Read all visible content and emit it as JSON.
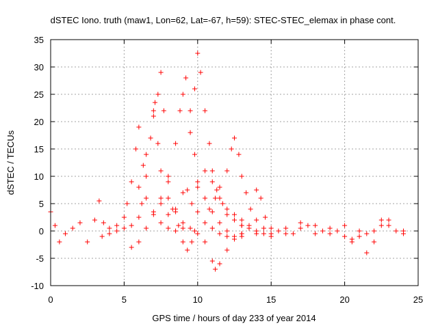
{
  "chart_data": {
    "type": "scatter",
    "title": "dSTEC Iono. truth (maw1, Lon=62, Lat=-67, h=59): STEC-STEC_elemax in phase cont.",
    "xlabel": "GPS time / hours of day 233 of year 2014",
    "ylabel": "dSTEC  / TECUs",
    "xlim": [
      0,
      25
    ],
    "ylim": [
      -10,
      35
    ],
    "xticks": [
      "0",
      "5",
      "10",
      "15",
      "20",
      "25"
    ],
    "yticks": [
      "-10",
      "-5",
      "0",
      "5",
      "10",
      "15",
      "20",
      "25",
      "30",
      "35"
    ],
    "grid": true,
    "marker": "+",
    "colors": {
      "series": "#ff0000",
      "grid": "#a0a0a0",
      "axis": "#000000"
    },
    "series": [
      {
        "values": [
          [
            0,
            3.5
          ],
          [
            0.3,
            1.0
          ],
          [
            0.6,
            -2.0
          ],
          [
            1.0,
            -0.5
          ],
          [
            1.5,
            0.5
          ],
          [
            2.0,
            1.5
          ],
          [
            2.5,
            -2.0
          ],
          [
            3.0,
            2.0
          ],
          [
            3.3,
            5.5
          ],
          [
            3.6,
            1.5
          ],
          [
            4.0,
            0.5
          ],
          [
            4.5,
            1.0
          ],
          [
            5.0,
            2.5
          ],
          [
            5.2,
            5.0
          ],
          [
            5.5,
            9.0
          ],
          [
            5.8,
            15.0
          ],
          [
            6.0,
            19.0
          ],
          [
            6.3,
            12.0
          ],
          [
            6.5,
            6.0
          ],
          [
            7.0,
            3.5
          ],
          [
            7.5,
            1.5
          ],
          [
            8.0,
            0.5
          ],
          [
            8.5,
            0.0
          ],
          [
            9.0,
            0.5
          ]
        ]
      },
      {
        "values": [
          [
            3.5,
            -1.0
          ],
          [
            4.0,
            -0.5
          ],
          [
            4.5,
            0.0
          ],
          [
            5.0,
            0.5
          ],
          [
            5.5,
            1.0
          ],
          [
            6.0,
            2.5
          ],
          [
            6.2,
            5.0
          ],
          [
            6.5,
            10.0
          ],
          [
            6.8,
            17.0
          ],
          [
            7.0,
            22.0
          ],
          [
            7.1,
            23.5
          ],
          [
            7.3,
            16.0
          ],
          [
            7.5,
            11.0
          ],
          [
            8.0,
            6.0
          ],
          [
            8.5,
            3.5
          ],
          [
            9.0,
            1.5
          ],
          [
            9.5,
            0.5
          ],
          [
            10.0,
            -0.5
          ],
          [
            10.5,
            -2.0
          ],
          [
            11.0,
            -5.5
          ],
          [
            11.2,
            -7.0
          ],
          [
            11.5,
            -6.0
          ],
          [
            12.0,
            -3.5
          ],
          [
            12.5,
            -1.5
          ],
          [
            13.0,
            -0.5
          ]
        ]
      },
      {
        "values": [
          [
            5.5,
            -3.0
          ],
          [
            6.0,
            -2.0
          ],
          [
            6.5,
            0.5
          ],
          [
            7.0,
            3.0
          ],
          [
            7.5,
            6.0
          ],
          [
            8.0,
            10.0
          ],
          [
            8.5,
            16.0
          ],
          [
            8.8,
            22.0
          ],
          [
            9.0,
            25.0
          ],
          [
            9.2,
            28.0
          ],
          [
            9.5,
            22.0
          ],
          [
            9.8,
            14.0
          ],
          [
            10.0,
            9.0
          ],
          [
            10.5,
            6.0
          ],
          [
            11.0,
            3.5
          ],
          [
            11.5,
            1.5
          ],
          [
            12.0,
            0.0
          ],
          [
            12.5,
            -1.0
          ],
          [
            13.0,
            -0.5
          ]
        ]
      },
      {
        "values": [
          [
            6.0,
            8.0
          ],
          [
            6.5,
            14.0
          ],
          [
            7.0,
            21.0
          ],
          [
            7.3,
            25.0
          ],
          [
            7.5,
            29.0
          ],
          [
            7.7,
            22.0
          ],
          [
            8.0,
            9.0
          ],
          [
            8.3,
            4.0
          ],
          [
            8.7,
            1.0
          ],
          [
            9.0,
            -2.0
          ],
          [
            9.3,
            -3.5
          ],
          [
            9.6,
            -2.0
          ],
          [
            9.8,
            0.0
          ]
        ]
      },
      {
        "values": [
          [
            7.5,
            5.0
          ],
          [
            8.0,
            3.0
          ],
          [
            8.5,
            4.0
          ],
          [
            9.0,
            7.0
          ],
          [
            9.3,
            7.5
          ],
          [
            9.6,
            5.0
          ],
          [
            10.0,
            3.5
          ],
          [
            10.5,
            1.5
          ],
          [
            11.0,
            0.5
          ],
          [
            11.5,
            -0.5
          ],
          [
            12.0,
            -1.0
          ],
          [
            12.5,
            -1.5
          ],
          [
            13.0,
            -1.0
          ],
          [
            14.0,
            -0.5
          ]
        ]
      },
      {
        "values": [
          [
            9.5,
            18.0
          ],
          [
            9.8,
            26.0
          ],
          [
            10.0,
            32.5
          ],
          [
            10.2,
            29.0
          ],
          [
            10.5,
            22.0
          ],
          [
            10.8,
            16.0
          ],
          [
            11.0,
            11.0
          ],
          [
            11.3,
            7.5
          ],
          [
            11.7,
            5.0
          ],
          [
            12.0,
            3.0
          ],
          [
            12.5,
            2.0
          ],
          [
            13.0,
            1.0
          ],
          [
            13.5,
            0.5
          ],
          [
            14.0,
            0.0
          ],
          [
            14.5,
            -0.5
          ],
          [
            15.0,
            -1.0
          ]
        ]
      },
      {
        "values": [
          [
            10.0,
            8.0
          ],
          [
            10.5,
            11.0
          ],
          [
            11.0,
            9.0
          ],
          [
            11.5,
            6.0
          ],
          [
            12.0,
            4.0
          ],
          [
            12.5,
            3.0
          ],
          [
            13.0,
            2.0
          ],
          [
            13.5,
            1.0
          ]
        ]
      },
      {
        "values": [
          [
            10.8,
            4.0
          ],
          [
            11.2,
            6.0
          ],
          [
            11.5,
            8.0
          ],
          [
            12.0,
            11.0
          ],
          [
            12.3,
            15.0
          ],
          [
            12.5,
            17.0
          ],
          [
            12.8,
            14.0
          ],
          [
            13.0,
            10.0
          ],
          [
            13.3,
            7.0
          ],
          [
            13.6,
            4.0
          ],
          [
            14.0,
            2.0
          ],
          [
            14.5,
            0.5
          ],
          [
            15.0,
            -0.5
          ]
        ]
      },
      {
        "values": [
          [
            13.0,
            1.0
          ],
          [
            13.5,
            0.5
          ],
          [
            14.0,
            7.5
          ],
          [
            14.3,
            6.0
          ],
          [
            14.6,
            2.5
          ],
          [
            15.0,
            0.5
          ],
          [
            15.5,
            0.0
          ],
          [
            16.0,
            -0.5
          ],
          [
            16.5,
            -0.5
          ],
          [
            17.0,
            0.5
          ],
          [
            17.5,
            1.0
          ],
          [
            18.0,
            -0.5
          ],
          [
            18.5,
            0.0
          ],
          [
            19.0,
            0.5
          ],
          [
            19.5,
            0.0
          ],
          [
            20.0,
            -1.0
          ],
          [
            20.5,
            -2.0
          ],
          [
            21.0,
            -1.0
          ],
          [
            21.5,
            -0.5
          ],
          [
            22.0,
            0.0
          ],
          [
            22.5,
            2.0
          ],
          [
            23.0,
            1.0
          ],
          [
            23.5,
            0.0
          ],
          [
            24.0,
            -0.5
          ]
        ]
      },
      {
        "values": [
          [
            16.0,
            0.5
          ],
          [
            17.0,
            1.5
          ],
          [
            18.0,
            1.0
          ],
          [
            19.0,
            -0.5
          ],
          [
            20.0,
            1.0
          ],
          [
            20.5,
            -1.5
          ],
          [
            21.0,
            0.0
          ],
          [
            21.5,
            -4.0
          ],
          [
            22.0,
            -2.0
          ],
          [
            22.5,
            1.0
          ],
          [
            23.0,
            2.0
          ],
          [
            24.0,
            0.0
          ]
        ]
      }
    ]
  }
}
